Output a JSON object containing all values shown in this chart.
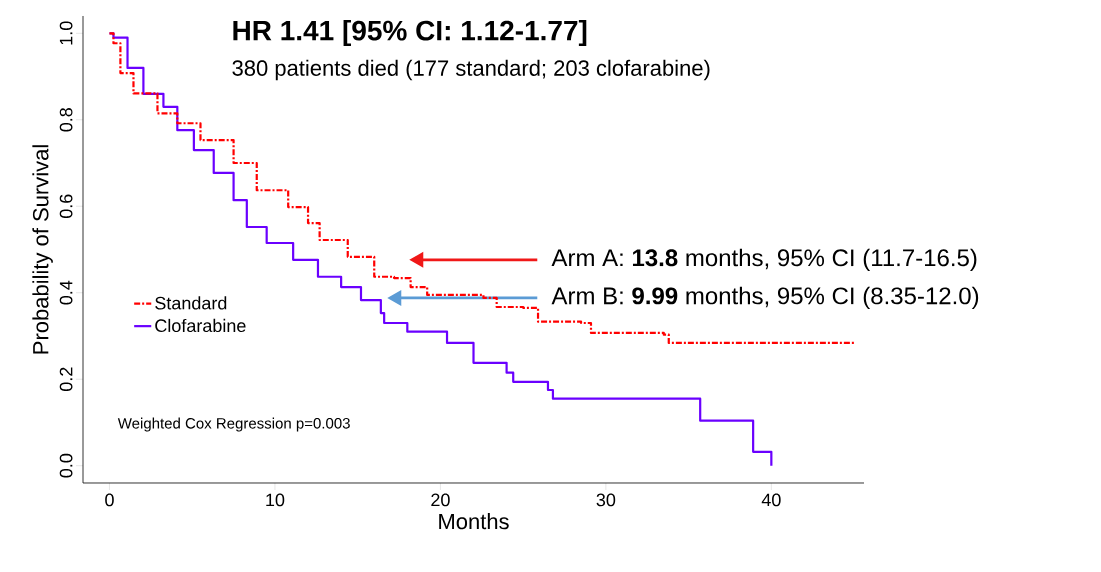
{
  "chart_data": {
    "type": "step",
    "title": "HR 1.41 [95% CI: 1.12-1.77]",
    "subtitle": "380 patients died (177 standard; 203 clofarabine)",
    "xlabel": "Months",
    "ylabel": "Probability of Survival",
    "xlim": [
      -1.6,
      45.6
    ],
    "ylim": [
      -0.04,
      1.04
    ],
    "xticks": [
      0,
      10,
      20,
      30,
      40
    ],
    "yticks": [
      {
        "value": 0,
        "label": "0.0"
      },
      0.2,
      0.4,
      0.6,
      0.8,
      {
        "value": 1,
        "label": "1.0"
      }
    ],
    "legend": "left",
    "grid": false,
    "series": [
      {
        "name": "Standard",
        "color": "#ff0000",
        "line_style": "dashed",
        "x": [
          0,
          0.24,
          0.66,
          1.45,
          2.9,
          4.1,
          5.5,
          7.5,
          8.9,
          10.8,
          12.0,
          12.7,
          14.4,
          16.0,
          17.2,
          18.2,
          19.2,
          22.6,
          23.4,
          25.0,
          25.9,
          28.5,
          29.1,
          33.5,
          33.8,
          45.0
        ],
        "values": [
          1.0,
          0.977,
          0.908,
          0.861,
          0.815,
          0.792,
          0.753,
          0.7,
          0.637,
          0.598,
          0.561,
          0.522,
          0.483,
          0.437,
          0.434,
          0.413,
          0.395,
          0.388,
          0.367,
          0.365,
          0.333,
          0.33,
          0.307,
          0.303,
          0.284,
          0.284
        ]
      },
      {
        "name": "Clofarabine",
        "color": "#6a00ff",
        "line_style": "solid",
        "x": [
          0,
          0.24,
          1.09,
          2.05,
          3.26,
          4.1,
          5.1,
          6.3,
          7.5,
          8.3,
          9.5,
          11.1,
          12.6,
          14.0,
          15.2,
          16.4,
          16.6,
          18.0,
          20.4,
          22.0,
          23.2,
          24.0,
          24.4,
          25.4,
          26.5,
          26.8,
          35.7,
          38.9,
          40.0
        ],
        "values": [
          1.0,
          0.99,
          0.92,
          0.86,
          0.83,
          0.776,
          0.73,
          0.677,
          0.614,
          0.552,
          0.515,
          0.476,
          0.437,
          0.413,
          0.383,
          0.353,
          0.33,
          0.31,
          0.284,
          0.238,
          0.238,
          0.215,
          0.194,
          0.194,
          0.175,
          0.155,
          0.104,
          0.032,
          0.0
        ]
      }
    ],
    "annotations": [
      "Arm A: **13.8** months, 95% CI (11.7-16.5)",
      "Arm B: **9.99** months, 95% CI (8.35-12.0)",
      "Weighted Cox Regression p=0.003"
    ]
  }
}
